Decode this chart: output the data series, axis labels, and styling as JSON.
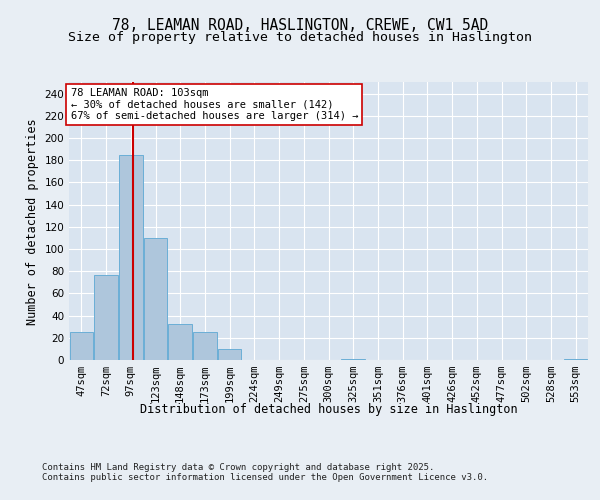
{
  "title_line1": "78, LEAMAN ROAD, HASLINGTON, CREWE, CW1 5AD",
  "title_line2": "Size of property relative to detached houses in Haslington",
  "xlabel": "Distribution of detached houses by size in Haslington",
  "ylabel": "Number of detached properties",
  "bar_labels": [
    "47sqm",
    "72sqm",
    "97sqm",
    "123sqm",
    "148sqm",
    "173sqm",
    "199sqm",
    "224sqm",
    "249sqm",
    "275sqm",
    "300sqm",
    "325sqm",
    "351sqm",
    "376sqm",
    "401sqm",
    "426sqm",
    "452sqm",
    "477sqm",
    "502sqm",
    "528sqm",
    "553sqm"
  ],
  "bar_values": [
    25,
    77,
    185,
    110,
    32,
    25,
    10,
    0,
    0,
    0,
    0,
    1,
    0,
    0,
    0,
    0,
    0,
    0,
    0,
    0,
    1
  ],
  "bar_color": "#aec6dc",
  "bar_edgecolor": "#6baed6",
  "vline_x_index": 2.08,
  "vline_color": "#cc0000",
  "annotation_text": "78 LEAMAN ROAD: 103sqm\n← 30% of detached houses are smaller (142)\n67% of semi-detached houses are larger (314) →",
  "annotation_box_color": "#ffffff",
  "annotation_box_edgecolor": "#cc0000",
  "ylim": [
    0,
    250
  ],
  "yticks": [
    0,
    20,
    40,
    60,
    80,
    100,
    120,
    140,
    160,
    180,
    200,
    220,
    240
  ],
  "background_color": "#e8eef4",
  "plot_background_color": "#d9e4f0",
  "grid_color": "#ffffff",
  "footer_text": "Contains HM Land Registry data © Crown copyright and database right 2025.\nContains public sector information licensed under the Open Government Licence v3.0.",
  "title_fontsize": 10.5,
  "subtitle_fontsize": 9.5,
  "axis_label_fontsize": 8.5,
  "tick_fontsize": 7.5,
  "annotation_fontsize": 7.5,
  "footer_fontsize": 6.5
}
